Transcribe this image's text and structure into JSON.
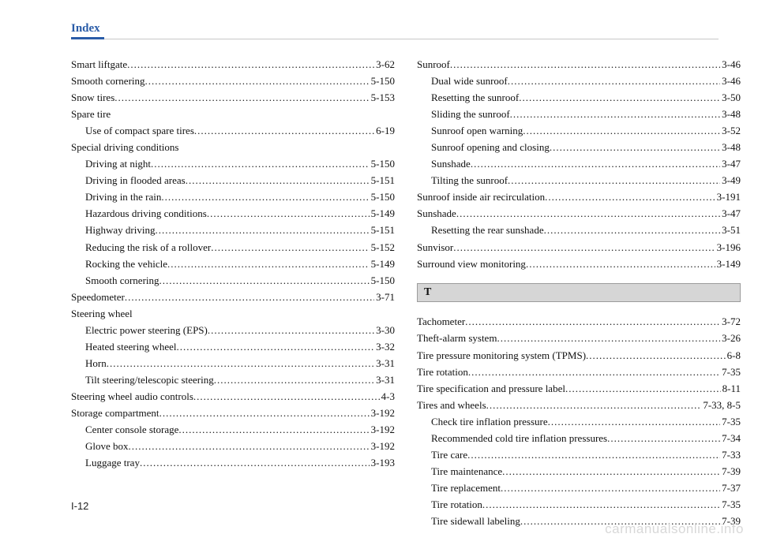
{
  "header": {
    "title": "Index"
  },
  "page_number": "I-12",
  "watermark": "carmanualsonline.info",
  "letter_box": "T",
  "left_col": [
    {
      "t": "entry",
      "label": "Smart liftgate",
      "page": "3-62"
    },
    {
      "t": "entry",
      "label": "Smooth cornering",
      "page": "5-150"
    },
    {
      "t": "entry",
      "label": "Snow tires",
      "page": "5-153"
    },
    {
      "t": "heading",
      "label": "Spare tire"
    },
    {
      "t": "sub",
      "label": "Use of compact spare tires",
      "page": "6-19"
    },
    {
      "t": "heading",
      "label": "Special driving conditions"
    },
    {
      "t": "sub",
      "label": "Driving at night",
      "page": "5-150"
    },
    {
      "t": "sub",
      "label": "Driving in flooded areas",
      "page": "5-151"
    },
    {
      "t": "sub",
      "label": "Driving in the rain",
      "page": "5-150"
    },
    {
      "t": "sub",
      "label": "Hazardous driving conditions",
      "page": "5-149"
    },
    {
      "t": "sub",
      "label": "Highway driving",
      "page": "5-151"
    },
    {
      "t": "sub",
      "label": "Reducing the risk of a rollover",
      "page": "5-152"
    },
    {
      "t": "sub",
      "label": "Rocking the vehicle",
      "page": "5-149"
    },
    {
      "t": "sub",
      "label": "Smooth cornering",
      "page": "5-150"
    },
    {
      "t": "entry",
      "label": "Speedometer",
      "page": "3-71"
    },
    {
      "t": "heading",
      "label": "Steering wheel"
    },
    {
      "t": "sub",
      "label": "Electric power steering (EPS)",
      "page": "3-30"
    },
    {
      "t": "sub",
      "label": "Heated steering wheel",
      "page": "3-32"
    },
    {
      "t": "sub",
      "label": "Horn",
      "page": "3-31"
    },
    {
      "t": "sub",
      "label": "Tilt steering/telescopic steering",
      "page": "3-31"
    },
    {
      "t": "entry",
      "label": "Steering wheel audio controls",
      "page": "4-3"
    },
    {
      "t": "entry",
      "label": "Storage compartment",
      "page": "3-192"
    },
    {
      "t": "sub",
      "label": "Center console storage",
      "page": "3-192"
    },
    {
      "t": "sub",
      "label": "Glove box",
      "page": "3-192"
    },
    {
      "t": "sub",
      "label": "Luggage tray",
      "page": "3-193"
    }
  ],
  "right_col_top": [
    {
      "t": "entry",
      "label": "Sunroof",
      "page": "3-46"
    },
    {
      "t": "sub",
      "label": "Dual wide sunroof",
      "page": "3-46"
    },
    {
      "t": "sub",
      "label": "Resetting the sunroof",
      "page": "3-50"
    },
    {
      "t": "sub",
      "label": "Sliding the sunroof",
      "page": "3-48"
    },
    {
      "t": "sub",
      "label": "Sunroof open warning",
      "page": "3-52"
    },
    {
      "t": "sub",
      "label": "Sunroof opening and closing",
      "page": "3-48"
    },
    {
      "t": "sub",
      "label": "Sunshade",
      "page": "3-47"
    },
    {
      "t": "sub",
      "label": "Tilting the sunroof",
      "page": "3-49"
    },
    {
      "t": "entry",
      "label": "Sunroof inside air recirculation",
      "page": "3-191"
    },
    {
      "t": "entry",
      "label": "Sunshade",
      "page": "3-47"
    },
    {
      "t": "sub",
      "label": "Resetting the rear sunshade",
      "page": "3-51"
    },
    {
      "t": "entry",
      "label": "Sunvisor",
      "page": "3-196"
    },
    {
      "t": "entry",
      "label": "Surround view monitoring",
      "page": "3-149"
    }
  ],
  "right_col_bottom": [
    {
      "t": "entry",
      "label": "Tachometer",
      "page": "3-72"
    },
    {
      "t": "entry",
      "label": "Theft-alarm system",
      "page": "3-26"
    },
    {
      "t": "entry",
      "label": "Tire pressure monitoring system (TPMS)",
      "page": "6-8"
    },
    {
      "t": "entry",
      "label": "Tire rotation",
      "page": "7-35"
    },
    {
      "t": "entry",
      "label": "Tire specification and pressure label",
      "page": "8-11"
    },
    {
      "t": "entry",
      "label": "Tires and wheels",
      "page": "7-33, 8-5"
    },
    {
      "t": "sub",
      "label": "Check tire inflation pressure",
      "page": "7-35"
    },
    {
      "t": "sub",
      "label": "Recommended cold tire inflation pressures",
      "page": "7-34"
    },
    {
      "t": "sub",
      "label": "Tire care",
      "page": "7-33"
    },
    {
      "t": "sub",
      "label": "Tire maintenance",
      "page": "7-39"
    },
    {
      "t": "sub",
      "label": "Tire replacement",
      "page": "7-37"
    },
    {
      "t": "sub",
      "label": "Tire rotation",
      "page": "7-35"
    },
    {
      "t": "sub",
      "label": "Tire sidewall labeling",
      "page": "7-39"
    }
  ]
}
